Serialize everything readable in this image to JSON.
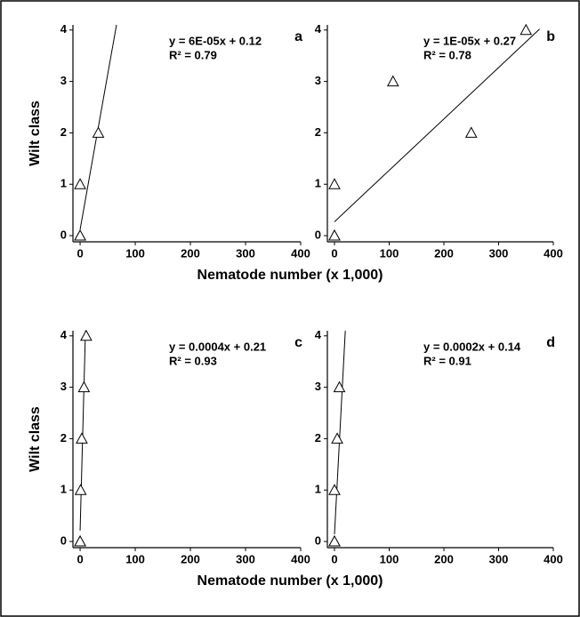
{
  "chart_data": [
    {
      "type": "scatter",
      "panel": "a",
      "ylabel": "Wilt class",
      "xlabel": "Nematode number (x 1,000)",
      "equation": "y = 6E-05x + 0.12",
      "r2": "R² = 0.79",
      "x": [
        0,
        0,
        0,
        33
      ],
      "y": [
        0,
        0,
        1,
        2
      ],
      "trendline": {
        "x": [
          0,
          66
        ],
        "y": [
          0.12,
          4.1
        ]
      },
      "xlim": [
        -13,
        400
      ],
      "ylim": [
        -0.12,
        4.1
      ],
      "xticks": [
        0,
        100,
        200,
        300,
        400
      ],
      "yticks": [
        0,
        1,
        2,
        3,
        4
      ]
    },
    {
      "type": "scatter",
      "panel": "b",
      "equation": "y = 1E-05x + 0.27",
      "r2": "R² = 0.78",
      "x": [
        0,
        0,
        0,
        107,
        250,
        350
      ],
      "y": [
        0,
        0,
        1,
        3,
        2,
        4
      ],
      "trendline": {
        "x": [
          0,
          375
        ],
        "y": [
          0.27,
          4.02
        ]
      },
      "xlim": [
        -13,
        400
      ],
      "ylim": [
        -0.12,
        4.1
      ],
      "xticks": [
        0,
        100,
        200,
        300,
        400
      ],
      "yticks": [
        0,
        1,
        2,
        3,
        4
      ]
    },
    {
      "type": "scatter",
      "panel": "c",
      "ylabel": "Wilt class",
      "xlabel": "Nematode number (x 1,000)",
      "equation": "y = 0.0004x + 0.21",
      "r2": "R² = 0.93",
      "x": [
        0,
        0,
        1,
        3,
        7,
        11
      ],
      "y": [
        0,
        0,
        1,
        2,
        3,
        4
      ],
      "trendline": {
        "x": [
          0,
          9.7
        ],
        "y": [
          0.21,
          4.1
        ]
      },
      "xlim": [
        -13,
        400
      ],
      "ylim": [
        -0.12,
        4.1
      ],
      "xticks": [
        0,
        100,
        200,
        300,
        400
      ],
      "yticks": [
        0,
        1,
        2,
        3,
        4
      ]
    },
    {
      "type": "scatter",
      "panel": "d",
      "equation": "y = 0.0002x + 0.14",
      "r2": "R² = 0.91",
      "x": [
        0,
        0,
        0,
        5,
        9
      ],
      "y": [
        0,
        0,
        1,
        2,
        3
      ],
      "trendline": {
        "x": [
          0,
          19.8
        ],
        "y": [
          0.14,
          4.1
        ]
      },
      "xlim": [
        -13,
        400
      ],
      "ylim": [
        -0.12,
        4.1
      ],
      "xticks": [
        0,
        100,
        200,
        300,
        400
      ],
      "yticks": [
        0,
        1,
        2,
        3,
        4
      ]
    }
  ]
}
